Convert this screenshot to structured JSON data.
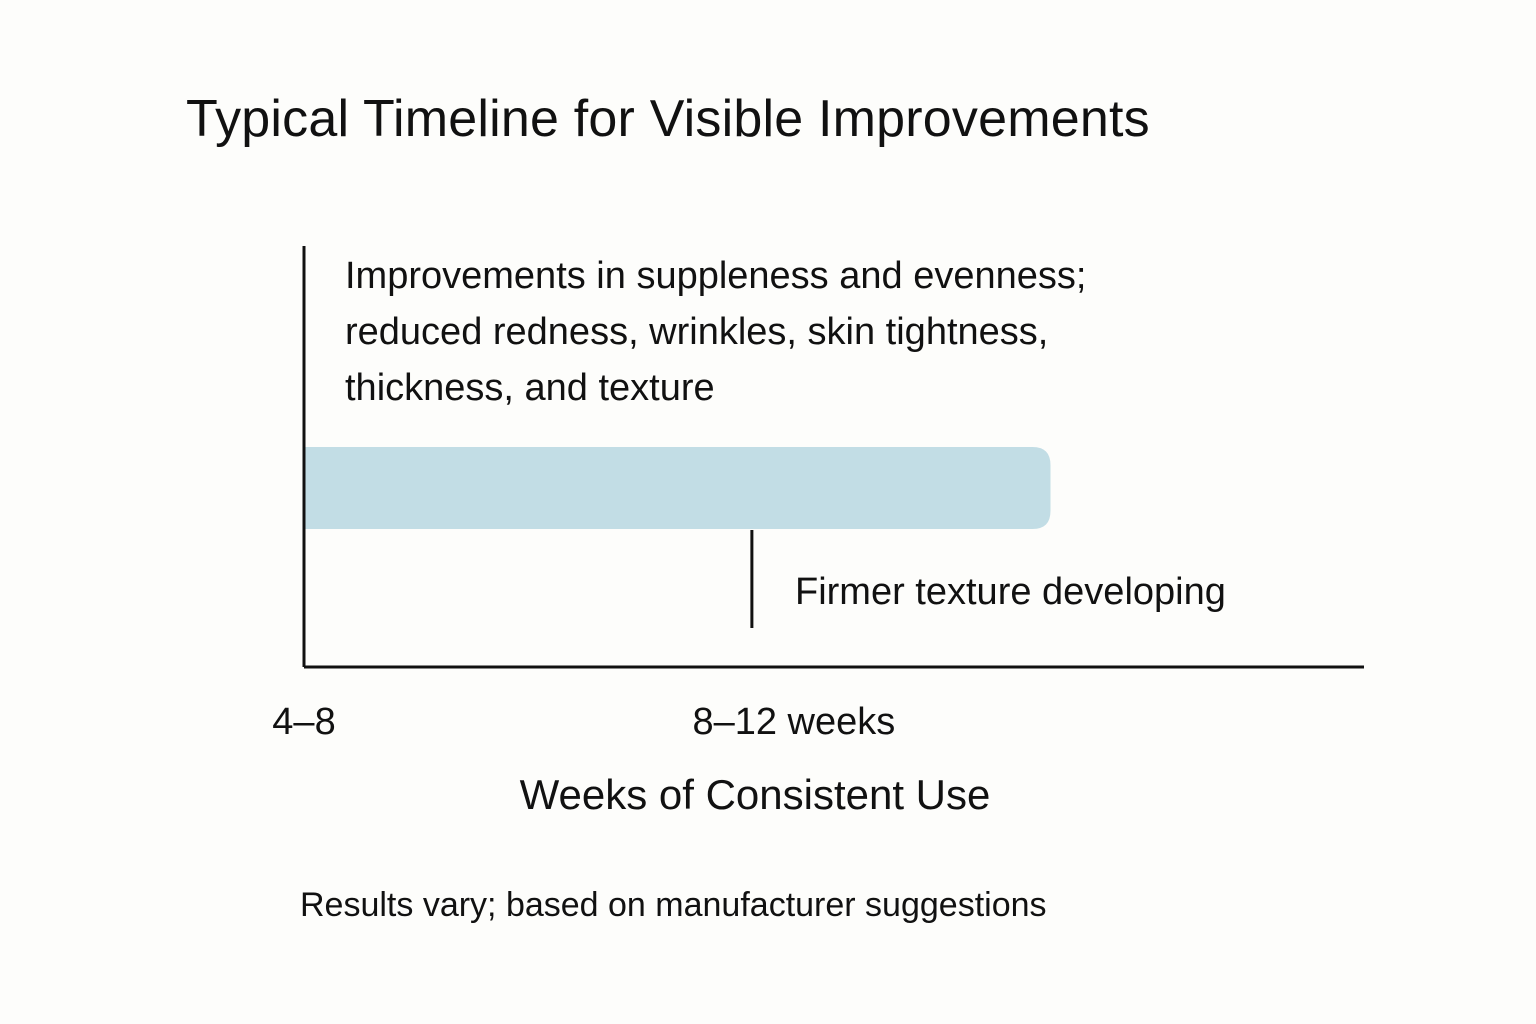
{
  "chart_data": {
    "type": "bar",
    "orientation": "horizontal",
    "title": "Typical Timeline for Visible Improvements",
    "xlabel": "Weeks of Consistent Use",
    "ylabel": "",
    "x_ticks": [
      "4–8",
      "8–12 weeks"
    ],
    "bars": [
      {
        "start_weeks": 4,
        "end_weeks": 14,
        "color": "#c2dde5",
        "label_lines": [
          "Improvements in suppleness and evenness;",
          "reduced redness, wrinkles, skin tightness,",
          "thickness, and texture"
        ]
      }
    ],
    "markers": [
      {
        "at_weeks": 10,
        "label": "Firmer texture developing"
      }
    ],
    "xlim": [
      4,
      18.2
    ],
    "grid": false,
    "footnote": "Results vary; based on manufacturer suggestions"
  }
}
